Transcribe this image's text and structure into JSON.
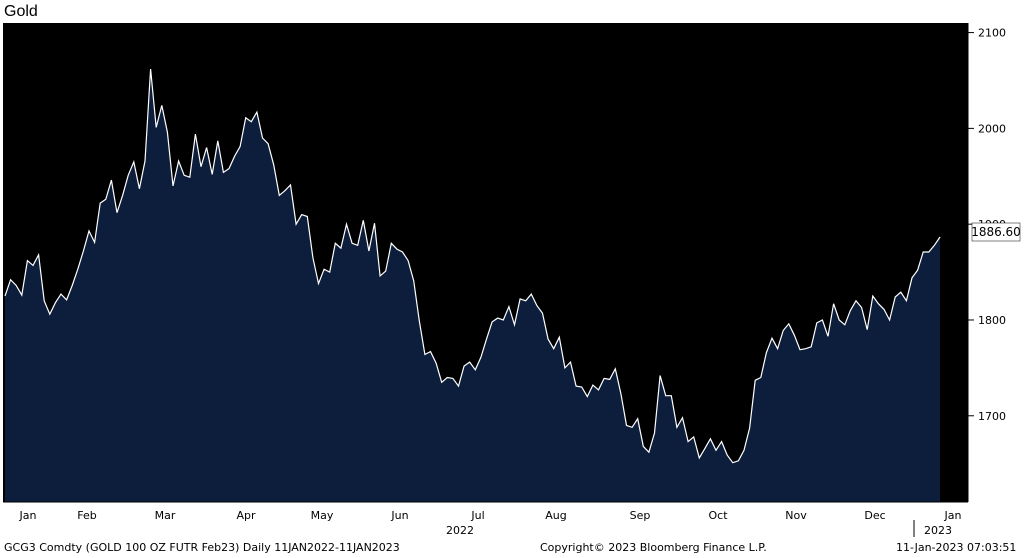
{
  "footer": {
    "left": "GCG3 Comdty (GOLD 100 OZ FUTR  Feb23)  Daily 11JAN2022-11JAN2023",
    "center": "Copyright© 2023 Bloomberg Finance L.P.",
    "right": "11-Jan-2023 07:03:51"
  },
  "colors": {
    "background": "#000000",
    "area_fill": "#0d1e3c",
    "line": "#ffffff",
    "last_price_label_bg": "#ffffff"
  },
  "chart_data": {
    "type": "area",
    "title": "Gold",
    "xlabel": "",
    "ylabel": "",
    "ylim": [
      1610,
      2110
    ],
    "y_ticks": [
      1700,
      1800,
      1900,
      2000,
      2100
    ],
    "x_tick_labels": [
      "Jan",
      "Feb",
      "Mar",
      "Apr",
      "May",
      "Jun",
      "Jul",
      "Aug",
      "Sep",
      "Oct",
      "Nov",
      "Dec",
      "Jan"
    ],
    "year_labels": [
      "2022",
      "2023"
    ],
    "last_price_label": "1886.60",
    "grid": false,
    "legend": "none",
    "series": [
      {
        "values": [
          1825,
          1842,
          1836,
          1826,
          1862,
          1857,
          1868,
          1820,
          1806,
          1818,
          1827,
          1821,
          1836,
          1853,
          1872,
          1893,
          1881,
          1922,
          1926,
          1946,
          1912,
          1930,
          1951,
          1965,
          1937,
          1966,
          2062,
          2001,
          2024,
          1996,
          1940,
          1966,
          1951,
          1949,
          1994,
          1960,
          1980,
          1952,
          1987,
          1954,
          1958,
          1971,
          1981,
          2011,
          2007,
          2017,
          1990,
          1984,
          1962,
          1930,
          1935,
          1941,
          1900,
          1910,
          1908,
          1865,
          1838,
          1853,
          1850,
          1880,
          1875,
          1900,
          1880,
          1878,
          1904,
          1872,
          1901,
          1846,
          1851,
          1880,
          1874,
          1871,
          1862,
          1841,
          1799,
          1764,
          1767,
          1755,
          1735,
          1740,
          1739,
          1731,
          1752,
          1756,
          1748,
          1761,
          1780,
          1798,
          1802,
          1800,
          1814,
          1795,
          1822,
          1820,
          1827,
          1815,
          1807,
          1780,
          1770,
          1782,
          1750,
          1756,
          1731,
          1730,
          1720,
          1732,
          1727,
          1739,
          1738,
          1749,
          1723,
          1690,
          1688,
          1697,
          1668,
          1662,
          1682,
          1742,
          1721,
          1721,
          1688,
          1698,
          1673,
          1678,
          1656,
          1666,
          1676,
          1664,
          1673,
          1659,
          1651,
          1653,
          1664,
          1687,
          1737,
          1740,
          1766,
          1781,
          1770,
          1789,
          1796,
          1784,
          1769,
          1770,
          1772,
          1797,
          1800,
          1783,
          1817,
          1800,
          1795,
          1810,
          1820,
          1813,
          1790,
          1825,
          1817,
          1811,
          1800,
          1824,
          1829,
          1820,
          1844,
          1852,
          1871,
          1871,
          1878,
          1886.6
        ]
      }
    ]
  }
}
